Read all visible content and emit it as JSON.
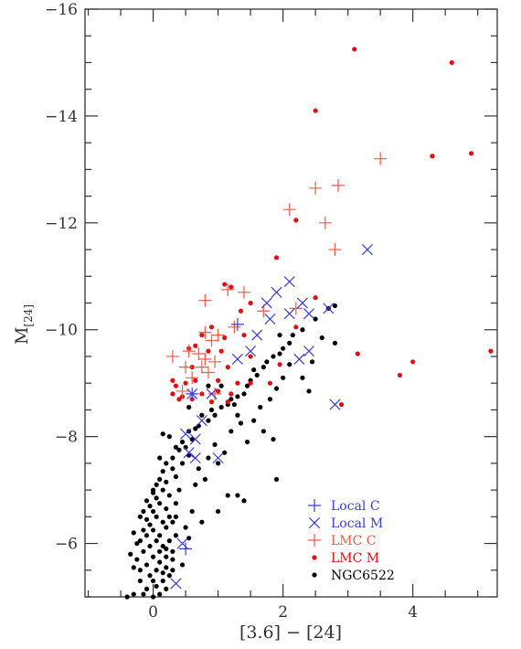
{
  "chart_data": {
    "type": "scatter",
    "title": "",
    "xlabel": "[3.6] − [24]",
    "ylabel_main": "M",
    "ylabel_sub": "[24]",
    "xlim": [
      -1.05,
      5.3
    ],
    "ylim": [
      -5,
      -16
    ],
    "y_inverted": true,
    "x_ticks": [
      0,
      2,
      4
    ],
    "x_tick_labels": [
      "0",
      "2",
      "4"
    ],
    "y_ticks": [
      -6,
      -8,
      -10,
      -12,
      -14,
      -16
    ],
    "y_tick_labels": [
      "−6",
      "−8",
      "−10",
      "−12",
      "−14",
      "−16"
    ],
    "grid": false,
    "legend_position": "bottom-right",
    "colors": {
      "local_c": "#3b3bd6",
      "local_m": "#3b3bd6",
      "lmc_c": "#ee5a4a",
      "lmc_m": "#e01010",
      "ngc6522": "#000000",
      "axes": "#333333"
    },
    "series": [
      {
        "name": "Local C",
        "marker": "plus",
        "color": "#3b3bd6",
        "points": [
          [
            1.3,
            -10.1
          ],
          [
            0.6,
            -8.8
          ],
          [
            0.5,
            -5.9
          ]
        ]
      },
      {
        "name": "Local M",
        "marker": "cross",
        "color": "#3b3bd6",
        "points": [
          [
            3.3,
            -11.5
          ],
          [
            2.1,
            -10.9
          ],
          [
            1.9,
            -10.7
          ],
          [
            2.3,
            -10.5
          ],
          [
            1.75,
            -10.5
          ],
          [
            2.7,
            -10.4
          ],
          [
            1.8,
            -10.2
          ],
          [
            2.1,
            -10.3
          ],
          [
            2.4,
            -10.3
          ],
          [
            1.6,
            -9.9
          ],
          [
            1.5,
            -9.6
          ],
          [
            1.3,
            -9.45
          ],
          [
            2.4,
            -9.6
          ],
          [
            2.25,
            -9.45
          ],
          [
            0.6,
            -8.8
          ],
          [
            0.9,
            -8.8
          ],
          [
            2.8,
            -8.6
          ],
          [
            0.75,
            -8.3
          ],
          [
            0.5,
            -8.05
          ],
          [
            0.65,
            -7.95
          ],
          [
            0.55,
            -7.7
          ],
          [
            0.65,
            -7.6
          ],
          [
            1.0,
            -7.6
          ],
          [
            0.45,
            -6.0
          ],
          [
            0.35,
            -5.25
          ]
        ]
      },
      {
        "name": "LMC C",
        "marker": "plus",
        "color": "#ee5a4a",
        "points": [
          [
            3.5,
            -13.2
          ],
          [
            2.85,
            -12.7
          ],
          [
            2.5,
            -12.65
          ],
          [
            2.1,
            -12.25
          ],
          [
            2.65,
            -12.0
          ],
          [
            2.8,
            -11.5
          ],
          [
            1.15,
            -10.75
          ],
          [
            1.4,
            -10.7
          ],
          [
            0.8,
            -10.55
          ],
          [
            2.2,
            -10.4
          ],
          [
            1.7,
            -10.35
          ],
          [
            1.25,
            -10.05
          ],
          [
            0.8,
            -9.95
          ],
          [
            1.0,
            -9.9
          ],
          [
            0.9,
            -9.8
          ],
          [
            0.55,
            -9.6
          ],
          [
            0.7,
            -9.55
          ],
          [
            0.3,
            -9.5
          ],
          [
            0.8,
            -9.45
          ],
          [
            0.95,
            -9.4
          ],
          [
            0.75,
            -9.3
          ],
          [
            0.5,
            -9.3
          ],
          [
            0.85,
            -9.2
          ],
          [
            0.6,
            -9.1
          ],
          [
            0.45,
            -8.85
          ],
          [
            0.95,
            -8.8
          ]
        ]
      },
      {
        "name": "LMC M",
        "marker": "dot",
        "color": "#e01010",
        "points": [
          [
            3.1,
            -15.25
          ],
          [
            4.6,
            -15.0
          ],
          [
            2.5,
            -14.1
          ],
          [
            4.9,
            -13.3
          ],
          [
            4.3,
            -13.25
          ],
          [
            2.2,
            -12.05
          ],
          [
            1.9,
            -11.35
          ],
          [
            1.1,
            -10.85
          ],
          [
            1.2,
            -10.8
          ],
          [
            2.5,
            -10.6
          ],
          [
            1.5,
            -10.5
          ],
          [
            1.35,
            -10.35
          ],
          [
            2.2,
            -10.05
          ],
          [
            0.9,
            -10.05
          ],
          [
            0.75,
            -9.9
          ],
          [
            1.4,
            -9.9
          ],
          [
            1.1,
            -9.85
          ],
          [
            0.65,
            -9.7
          ],
          [
            0.55,
            -9.65
          ],
          [
            1.05,
            -9.6
          ],
          [
            0.85,
            -9.6
          ],
          [
            1.5,
            -9.5
          ],
          [
            1.95,
            -9.35
          ],
          [
            1.15,
            -9.3
          ],
          [
            0.6,
            -9.3
          ],
          [
            5.2,
            -9.6
          ],
          [
            3.15,
            -9.55
          ],
          [
            4.0,
            -9.4
          ],
          [
            3.8,
            -9.15
          ],
          [
            2.9,
            -8.6
          ],
          [
            0.3,
            -9.05
          ],
          [
            0.5,
            -9.0
          ],
          [
            0.65,
            -9.05
          ],
          [
            1.0,
            -9.05
          ],
          [
            1.3,
            -9.0
          ],
          [
            1.5,
            -9.0
          ],
          [
            1.8,
            -9.0
          ],
          [
            0.3,
            -8.8
          ],
          [
            0.45,
            -8.75
          ],
          [
            0.75,
            -8.8
          ],
          [
            1.0,
            -8.85
          ],
          [
            1.2,
            -8.8
          ],
          [
            0.4,
            -8.7
          ],
          [
            0.6,
            -8.7
          ],
          [
            0.9,
            -8.65
          ],
          [
            1.15,
            -8.65
          ],
          [
            0.35,
            -8.95
          ]
        ]
      },
      {
        "name": "NGC6522",
        "marker": "dot",
        "color": "#000000",
        "points": [
          [
            -0.4,
            -5.0
          ],
          [
            -0.3,
            -5.05
          ],
          [
            -0.15,
            -5.05
          ],
          [
            0.0,
            -5.0
          ],
          [
            0.1,
            -5.05
          ],
          [
            -0.1,
            -5.15
          ],
          [
            0.05,
            -5.2
          ],
          [
            0.2,
            -5.15
          ],
          [
            -0.2,
            -5.3
          ],
          [
            0.0,
            -5.3
          ],
          [
            0.15,
            -5.3
          ],
          [
            -0.05,
            -5.4
          ],
          [
            0.25,
            -5.4
          ],
          [
            -0.2,
            -5.5
          ],
          [
            0.05,
            -5.5
          ],
          [
            0.2,
            -5.55
          ],
          [
            0.3,
            -5.5
          ],
          [
            -0.1,
            -5.6
          ],
          [
            0.1,
            -5.65
          ],
          [
            -0.25,
            -5.7
          ],
          [
            0.0,
            -5.75
          ],
          [
            0.2,
            -5.75
          ],
          [
            -0.15,
            -5.85
          ],
          [
            0.1,
            -5.85
          ],
          [
            0.3,
            -5.85
          ],
          [
            -0.05,
            -5.95
          ],
          [
            0.15,
            -5.95
          ],
          [
            -0.2,
            -6.05
          ],
          [
            0.05,
            -6.05
          ],
          [
            0.25,
            -6.05
          ],
          [
            -0.1,
            -6.15
          ],
          [
            0.1,
            -6.15
          ],
          [
            0.35,
            -6.15
          ],
          [
            -0.15,
            -6.25
          ],
          [
            0.0,
            -6.25
          ],
          [
            0.2,
            -6.3
          ],
          [
            -0.05,
            -6.35
          ],
          [
            0.15,
            -6.4
          ],
          [
            0.3,
            -6.4
          ],
          [
            -0.1,
            -6.45
          ],
          [
            0.05,
            -6.5
          ],
          [
            0.25,
            -6.5
          ],
          [
            -0.15,
            -6.6
          ],
          [
            0.0,
            -6.6
          ],
          [
            0.2,
            -6.65
          ],
          [
            -0.05,
            -6.7
          ],
          [
            0.1,
            -6.75
          ],
          [
            0.35,
            -6.75
          ],
          [
            -0.1,
            -6.8
          ],
          [
            0.05,
            -6.85
          ],
          [
            0.25,
            -6.9
          ],
          [
            0.0,
            -6.95
          ],
          [
            0.15,
            -7.0
          ],
          [
            0.4,
            -7.0
          ],
          [
            0.05,
            -7.1
          ],
          [
            0.2,
            -7.15
          ],
          [
            0.1,
            -7.2
          ],
          [
            0.35,
            -7.25
          ],
          [
            0.15,
            -7.35
          ],
          [
            0.3,
            -7.4
          ],
          [
            0.2,
            -7.5
          ],
          [
            0.45,
            -7.5
          ],
          [
            0.3,
            -7.6
          ],
          [
            0.55,
            -7.65
          ],
          [
            0.4,
            -7.75
          ],
          [
            0.5,
            -7.8
          ],
          [
            0.45,
            -7.9
          ],
          [
            0.6,
            -7.95
          ],
          [
            0.25,
            -8.0
          ],
          [
            0.15,
            -8.05
          ],
          [
            0.55,
            -8.1
          ],
          [
            0.65,
            -8.15
          ],
          [
            0.7,
            -8.2
          ],
          [
            0.85,
            -8.3
          ],
          [
            0.75,
            -8.4
          ],
          [
            0.95,
            -8.4
          ],
          [
            0.9,
            -8.5
          ],
          [
            1.05,
            -8.55
          ],
          [
            1.15,
            -8.6
          ],
          [
            1.25,
            -8.6
          ],
          [
            1.3,
            -8.75
          ],
          [
            1.4,
            -8.8
          ],
          [
            1.45,
            -8.95
          ],
          [
            1.5,
            -9.05
          ],
          [
            1.6,
            -9.15
          ],
          [
            1.55,
            -9.25
          ],
          [
            1.7,
            -9.3
          ],
          [
            1.75,
            -9.4
          ],
          [
            1.85,
            -9.5
          ],
          [
            1.95,
            -9.55
          ],
          [
            2.0,
            -9.65
          ],
          [
            2.1,
            -9.75
          ],
          [
            2.15,
            -9.9
          ],
          [
            2.3,
            -10.0
          ],
          [
            2.5,
            -10.2
          ],
          [
            2.7,
            -10.4
          ],
          [
            2.8,
            -10.45
          ],
          [
            2.6,
            -9.85
          ],
          [
            2.8,
            -9.75
          ],
          [
            2.45,
            -9.4
          ],
          [
            2.3,
            -9.1
          ],
          [
            2.4,
            -8.85
          ],
          [
            1.8,
            -8.7
          ],
          [
            1.2,
            -8.7
          ],
          [
            1.3,
            -8.4
          ],
          [
            1.55,
            -8.3
          ],
          [
            1.7,
            -8.1
          ],
          [
            1.85,
            -7.95
          ],
          [
            1.45,
            -7.9
          ],
          [
            1.1,
            -7.7
          ],
          [
            1.0,
            -7.5
          ],
          [
            0.85,
            -7.6
          ],
          [
            0.7,
            -7.4
          ],
          [
            0.8,
            -7.2
          ],
          [
            1.3,
            -6.9
          ],
          [
            1.4,
            -6.8
          ],
          [
            1.15,
            -6.9
          ],
          [
            1.0,
            -6.6
          ],
          [
            0.6,
            -6.6
          ],
          [
            0.75,
            -6.4
          ],
          [
            0.5,
            -6.3
          ],
          [
            0.55,
            -6.1
          ],
          [
            1.9,
            -7.2
          ],
          [
            0.2,
            -5.9
          ],
          [
            0.35,
            -6.5
          ],
          [
            -0.3,
            -6.2
          ],
          [
            -0.35,
            -5.8
          ],
          [
            0.45,
            -5.6
          ],
          [
            0.65,
            -7.1
          ],
          [
            0.95,
            -7.85
          ],
          [
            1.2,
            -8.1
          ],
          [
            1.35,
            -8.25
          ],
          [
            1.65,
            -8.55
          ],
          [
            1.9,
            -8.9
          ],
          [
            2.0,
            -9.1
          ],
          [
            2.1,
            -9.35
          ],
          [
            1.95,
            -9.9
          ],
          [
            1.05,
            -8.95
          ],
          [
            0.85,
            -8.95
          ],
          [
            0.55,
            -8.55
          ],
          [
            0.35,
            -7.8
          ],
          [
            0.1,
            -7.6
          ],
          [
            0.0,
            -7.0
          ],
          [
            -0.2,
            -6.5
          ],
          [
            -0.25,
            -6.0
          ],
          [
            0.3,
            -5.7
          ],
          [
            0.15,
            -5.45
          ],
          [
            -0.3,
            -5.55
          ]
        ]
      }
    ]
  },
  "legend": {
    "items": [
      {
        "label": "Local C",
        "marker": "plus",
        "color": "#3b3bd6"
      },
      {
        "label": "Local M",
        "marker": "cross",
        "color": "#3b3bd6"
      },
      {
        "label": "LMC C",
        "marker": "plus",
        "color": "#ee5a4a"
      },
      {
        "label": "LMC M",
        "marker": "dot",
        "color": "#e01010"
      },
      {
        "label": "NGC6522",
        "marker": "dot",
        "color": "#000000"
      }
    ]
  }
}
